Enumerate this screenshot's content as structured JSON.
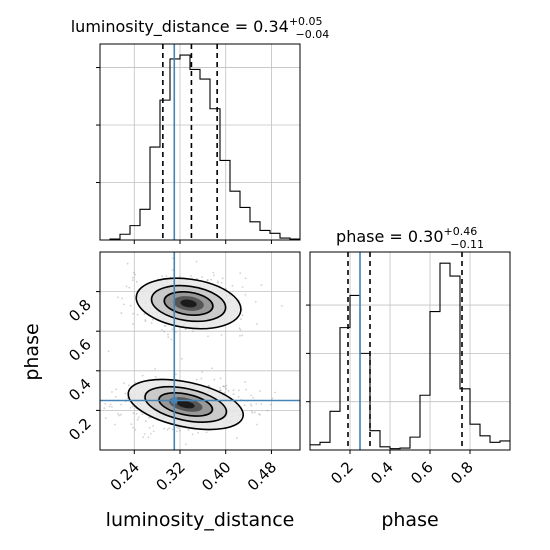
{
  "chart_data": [
    {
      "type": "histogram",
      "panel": "luminosity_distance marginal",
      "title": {
        "base": "luminosity_distance = 0.34",
        "sup": "+0.05",
        "sub": "−0.04"
      },
      "xlim": [
        0.18,
        0.53
      ],
      "bin_edges": [
        0.18,
        0.1975,
        0.215,
        0.2325,
        0.25,
        0.2675,
        0.285,
        0.3025,
        0.32,
        0.3375,
        0.355,
        0.3725,
        0.39,
        0.4075,
        0.425,
        0.4425,
        0.46,
        0.4775,
        0.495,
        0.5125,
        0.53
      ],
      "counts": [
        0,
        1,
        6,
        15,
        32,
        97,
        146,
        189,
        193,
        178,
        168,
        137,
        83,
        51,
        34,
        19,
        10,
        7,
        2,
        1
      ],
      "quantiles": [
        0.29,
        0.34,
        0.385
      ],
      "truth": 0.31,
      "grid": true
    },
    {
      "type": "scatter+contour",
      "panel": "phase vs luminosity_distance",
      "xlabel": "luminosity_distance",
      "ylabel": "phase",
      "xlim": [
        0.18,
        0.53
      ],
      "ylim": [
        0.0,
        1.0
      ],
      "xticks": [
        "0.24",
        "0.32",
        "0.40",
        "0.48"
      ],
      "yticks": [
        "0.2",
        "0.4",
        "0.6",
        "0.8"
      ],
      "modes": [
        {
          "x_center": 0.335,
          "y_center": 0.74,
          "x_sigma": 0.045,
          "y_sigma": 0.06,
          "weight": 0.45
        },
        {
          "x_center": 0.33,
          "y_center": 0.23,
          "x_sigma": 0.05,
          "y_sigma": 0.055,
          "weight": 0.55
        }
      ],
      "truth": {
        "x": 0.31,
        "y": 0.25
      },
      "grid": true
    },
    {
      "type": "histogram",
      "panel": "phase marginal",
      "title": {
        "base": "phase = 0.30",
        "sup": "+0.46",
        "sub": "−0.11"
      },
      "xlabel": "phase",
      "xlim": [
        0.0,
        1.0
      ],
      "xticks": [
        "0.2",
        "0.4",
        "0.6",
        "0.8"
      ],
      "bin_edges": [
        0.0,
        0.05,
        0.1,
        0.15,
        0.2,
        0.25,
        0.3,
        0.35,
        0.4,
        0.45,
        0.5,
        0.55,
        0.6,
        0.65,
        0.7,
        0.75,
        0.8,
        0.85,
        0.9,
        0.95,
        1.0
      ],
      "counts": [
        8,
        12,
        60,
        190,
        240,
        150,
        30,
        5,
        2,
        3,
        20,
        85,
        215,
        290,
        270,
        95,
        40,
        22,
        12,
        14
      ],
      "quantiles": [
        0.19,
        0.3,
        0.76
      ],
      "truth": 0.25,
      "grid": true
    }
  ],
  "colors": {
    "line": "#000000",
    "truth": "#4682b4",
    "grid": "#c0c0c0",
    "points": "#9a9a9a"
  }
}
